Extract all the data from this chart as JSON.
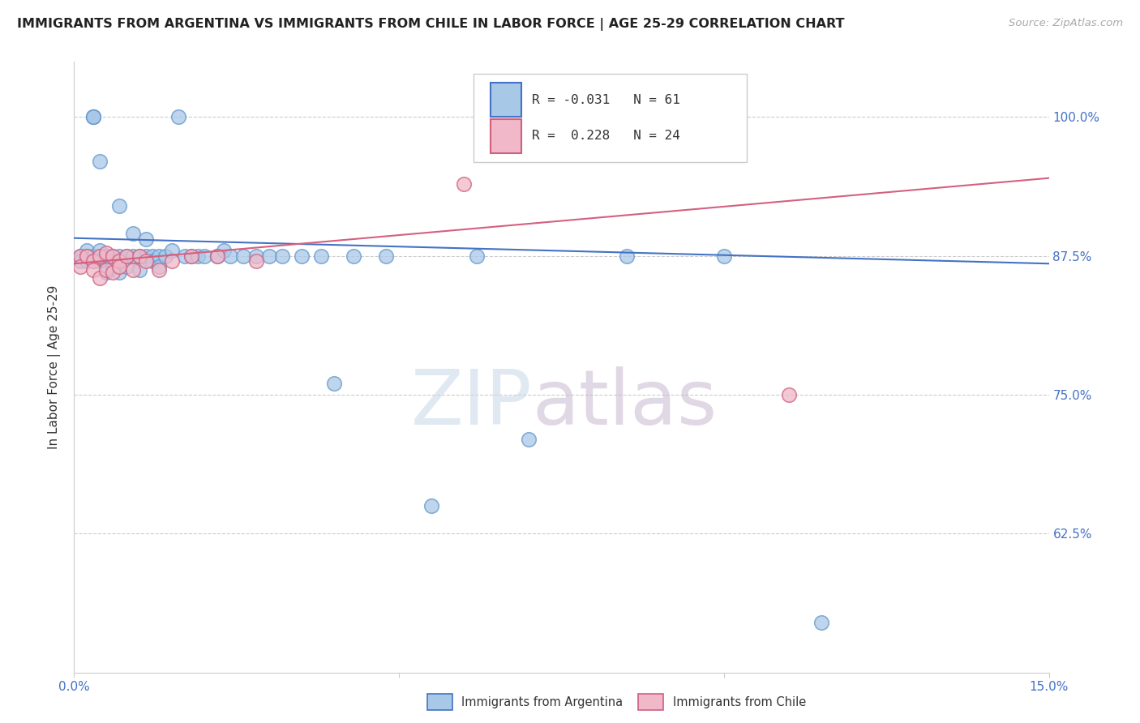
{
  "title": "IMMIGRANTS FROM ARGENTINA VS IMMIGRANTS FROM CHILE IN LABOR FORCE | AGE 25-29 CORRELATION CHART",
  "source": "Source: ZipAtlas.com",
  "ylabel": "In Labor Force | Age 25-29",
  "xlim": [
    0.0,
    0.15
  ],
  "ylim": [
    0.5,
    1.05
  ],
  "yticks": [
    0.625,
    0.75,
    0.875,
    1.0
  ],
  "yticklabels": [
    "62.5%",
    "75.0%",
    "87.5%",
    "100.0%"
  ],
  "xticks": [
    0.0,
    0.05,
    0.1,
    0.15
  ],
  "xticklabels": [
    "0.0%",
    "",
    "",
    "15.0%"
  ],
  "argentina_color": "#a8c8e8",
  "argentina_edge_color": "#6699cc",
  "chile_color": "#f0b8c8",
  "chile_edge_color": "#d06080",
  "argentina_line_color": "#4472C4",
  "chile_line_color": "#d46080",
  "argentina_R": -0.031,
  "argentina_N": 61,
  "chile_R": 0.228,
  "chile_N": 24,
  "legend_label_argentina": "Immigrants from Argentina",
  "legend_label_chile": "Immigrants from Chile",
  "watermark_zip": "ZIP",
  "watermark_atlas": "atlas",
  "arg_line_x0": 0.0,
  "arg_line_x1": 0.15,
  "arg_line_y0": 0.891,
  "arg_line_y1": 0.868,
  "chile_line_x0": 0.0,
  "chile_line_x1": 0.15,
  "chile_line_y0": 0.868,
  "chile_line_y1": 0.945,
  "argentina_x": [
    0.001,
    0.001,
    0.002,
    0.002,
    0.002,
    0.003,
    0.003,
    0.003,
    0.003,
    0.003,
    0.004,
    0.004,
    0.004,
    0.004,
    0.005,
    0.005,
    0.005,
    0.005,
    0.006,
    0.006,
    0.006,
    0.007,
    0.007,
    0.007,
    0.008,
    0.008,
    0.009,
    0.009,
    0.01,
    0.01,
    0.011,
    0.011,
    0.012,
    0.012,
    0.013,
    0.013,
    0.014,
    0.015,
    0.016,
    0.017,
    0.018,
    0.019,
    0.02,
    0.022,
    0.023,
    0.024,
    0.026,
    0.028,
    0.03,
    0.032,
    0.035,
    0.038,
    0.04,
    0.043,
    0.048,
    0.055,
    0.062,
    0.07,
    0.085,
    0.1,
    0.115
  ],
  "argentina_y": [
    0.875,
    0.87,
    0.88,
    0.875,
    0.87,
    1.0,
    1.0,
    1.0,
    0.875,
    0.87,
    0.96,
    0.875,
    0.88,
    0.87,
    0.875,
    0.87,
    0.86,
    0.875,
    0.875,
    0.865,
    0.87,
    0.92,
    0.875,
    0.86,
    0.875,
    0.865,
    0.895,
    0.875,
    0.875,
    0.862,
    0.89,
    0.875,
    0.875,
    0.87,
    0.875,
    0.865,
    0.875,
    0.88,
    1.0,
    0.875,
    0.875,
    0.875,
    0.875,
    0.875,
    0.88,
    0.875,
    0.875,
    0.875,
    0.875,
    0.875,
    0.875,
    0.875,
    0.76,
    0.875,
    0.875,
    0.65,
    0.875,
    0.71,
    0.875,
    0.875,
    0.545
  ],
  "chile_x": [
    0.001,
    0.001,
    0.002,
    0.003,
    0.003,
    0.004,
    0.004,
    0.005,
    0.005,
    0.006,
    0.006,
    0.007,
    0.007,
    0.008,
    0.009,
    0.01,
    0.011,
    0.013,
    0.015,
    0.018,
    0.022,
    0.028,
    0.06,
    0.11
  ],
  "chile_y": [
    0.875,
    0.865,
    0.875,
    0.87,
    0.862,
    0.875,
    0.855,
    0.878,
    0.862,
    0.875,
    0.86,
    0.87,
    0.865,
    0.875,
    0.862,
    0.875,
    0.87,
    0.862,
    0.87,
    0.875,
    0.875,
    0.87,
    0.94,
    0.75
  ]
}
